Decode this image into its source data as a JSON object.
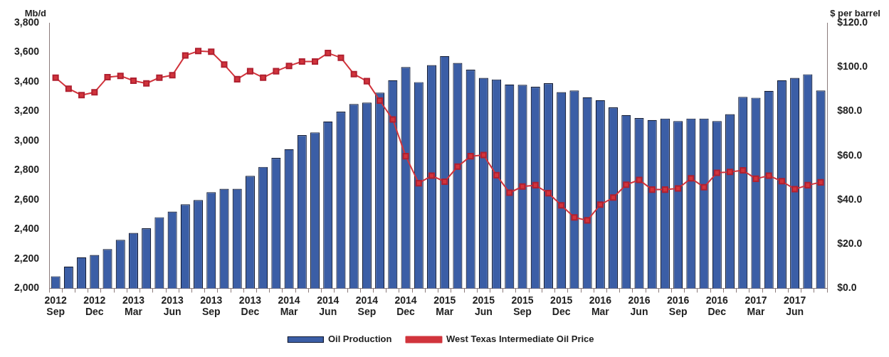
{
  "chart_data": {
    "type": "bar",
    "categories": [
      "2012 Sep",
      null,
      null,
      "2012 Dec",
      null,
      null,
      "2013 Mar",
      null,
      null,
      "2013 Jun",
      null,
      null,
      "2013 Sep",
      null,
      null,
      "2013 Dec",
      null,
      null,
      "2014 Mar",
      null,
      null,
      "2014 Jun",
      null,
      null,
      "2014 Sep",
      null,
      null,
      "2014 Dec",
      null,
      null,
      "2015 Mar",
      null,
      null,
      "2015 Jun",
      null,
      null,
      "2015 Sep",
      null,
      null,
      "2015 Dec",
      null,
      null,
      "2016 Mar",
      null,
      null,
      "2016 Jun",
      null,
      null,
      "2016 Sep",
      null,
      null,
      "2016 Dec",
      null,
      null,
      "2017 Mar",
      null,
      null,
      "2017 Jun",
      null,
      null
    ],
    "series": [
      {
        "name": "Oil Production",
        "color": "#3b5ea6",
        "values": [
          2082,
          2148,
          2210,
          2226,
          2266,
          2328,
          2375,
          2407,
          2482,
          2520,
          2569,
          2598,
          2651,
          2674,
          2674,
          2762,
          2823,
          2884,
          2943,
          3038,
          3057,
          3131,
          3197,
          3249,
          3259,
          3326,
          3410,
          3500,
          3398,
          3513,
          3574,
          3528,
          3482,
          3426,
          3416,
          3382,
          3379,
          3366,
          3390,
          3330,
          3341,
          3295,
          3275,
          3226,
          3174,
          3154,
          3141,
          3151,
          3134,
          3151,
          3151,
          3134,
          3180,
          3298,
          3292,
          3338,
          3410,
          3426,
          3451,
          3341
        ]
      },
      {
        "name": "West Texas Intermediate Oil Price",
        "type": "line",
        "axis": "y2",
        "color": "#d1343c",
        "marker": "square",
        "values": [
          95.2,
          90.2,
          87.3,
          88.6,
          95.4,
          96.0,
          93.8,
          92.6,
          95.2,
          96.3,
          105.2,
          107.2,
          106.9,
          101.1,
          94.5,
          98.1,
          95.2,
          98.1,
          100.5,
          102.5,
          102.5,
          106.3,
          104.2,
          96.8,
          93.6,
          84.8,
          76.3,
          59.7,
          47.5,
          50.9,
          48.2,
          55.0,
          59.7,
          60.2,
          51.1,
          43.2,
          46.0,
          46.6,
          43.0,
          37.5,
          32.0,
          30.7,
          37.8,
          41.0,
          46.8,
          49.0,
          44.6,
          44.6,
          45.1,
          49.7,
          45.7,
          52.2,
          52.6,
          53.3,
          49.5,
          50.9,
          48.4,
          44.8,
          46.6,
          47.9
        ]
      }
    ],
    "ylabel": "Mb/d",
    "y2label": "$ per barrel",
    "ylim": [
      2000,
      3800
    ],
    "yticks": [
      {
        "value": 2000,
        "label": "2,000"
      },
      {
        "value": 2200,
        "label": "2,200"
      },
      {
        "value": 2400,
        "label": "2,400"
      },
      {
        "value": 2600,
        "label": "2,600"
      },
      {
        "value": 2800,
        "label": "2,800"
      },
      {
        "value": 3000,
        "label": "3,000"
      },
      {
        "value": 3200,
        "label": "3,200"
      },
      {
        "value": 3400,
        "label": "3,400"
      },
      {
        "value": 3600,
        "label": "3,600"
      },
      {
        "value": 3800,
        "label": "3,800"
      }
    ],
    "y2lim": [
      0,
      120
    ],
    "y2ticks": [
      {
        "value": 0,
        "label": "$0.0"
      },
      {
        "value": 20,
        "label": "$20.0"
      },
      {
        "value": 40,
        "label": "$40.0"
      },
      {
        "value": 60,
        "label": "$60.0"
      },
      {
        "value": 80,
        "label": "$80.0"
      },
      {
        "value": 100,
        "label": "$100.0"
      },
      {
        "value": 120,
        "label": "$120.0"
      }
    ],
    "grid": false,
    "legend": "bottom"
  }
}
